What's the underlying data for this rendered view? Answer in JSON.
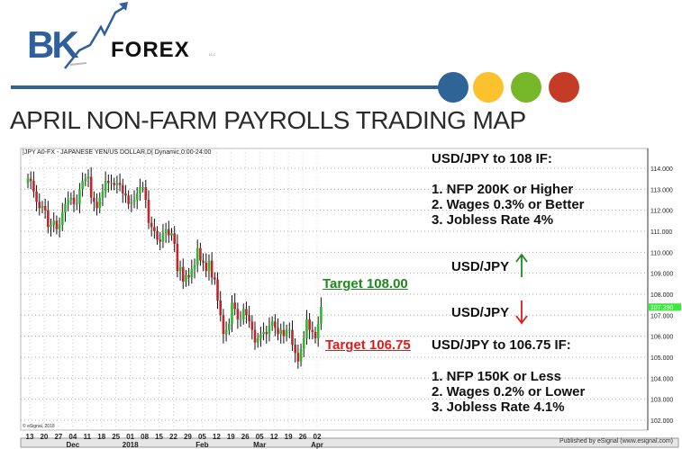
{
  "header": {
    "logo_text_bk": "BK",
    "logo_text_forex": "FOREX",
    "logo_text_llc": "LLC",
    "title": "APRIL NON-FARM PAYROLLS TRADING MAP",
    "rule_color": "#2e6496",
    "dot_colors": [
      "#2e6496",
      "#fbc22e",
      "#76b82a",
      "#c43b26"
    ]
  },
  "annotations": {
    "bull_heading": "USD/JPY to 108 IF:",
    "bull_items": [
      "1. NFP 200K or Higher",
      "2. Wages 0.3% or Better",
      "3. Jobless Rate 4%"
    ],
    "up_label": "USD/JPY",
    "down_label": "USD/JPY",
    "target_up": "Target 108.00",
    "target_down": "Target 106.75",
    "bear_heading": "USD/JPY to 106.75 IF:",
    "bear_items": [
      "1. NFP 150K or Less",
      "2. Wages 0.2% or Lower",
      "3. Jobless Rate 4.1%"
    ],
    "up_color": "#1e8a1e",
    "down_color": "#e01b1b"
  },
  "chart_data": {
    "type": "candlestick",
    "title": "|JPY A0-FX - JAPANESE YEN/US DOLLAR,D| Dynamic,0:00-24:00",
    "ylim": [
      102,
      114.5
    ],
    "y_ticks": [
      "114.000",
      "113.000",
      "112.000",
      "111.000",
      "110.000",
      "109.000",
      "108.000",
      "107.000",
      "106.000",
      "105.000",
      "104.000",
      "103.000",
      "102.000"
    ],
    "last_price": "107.390",
    "x_ticks": [
      "13",
      "20",
      "27",
      "04",
      "11",
      "18",
      "25",
      "01",
      "08",
      "15",
      "22",
      "29",
      "05",
      "12",
      "19",
      "26",
      "05",
      "12",
      "19",
      "26",
      "02"
    ],
    "x_month_labels": [
      {
        "label": "Dec",
        "tick": 3
      },
      {
        "label": "2018",
        "tick": 7
      },
      {
        "label": "Feb",
        "tick": 12
      },
      {
        "label": "Mar",
        "tick": 16
      },
      {
        "label": "Apr",
        "tick": 20
      }
    ],
    "closes": [
      113.5,
      113.4,
      112.9,
      112.4,
      112.1,
      112.2,
      112.0,
      111.2,
      111.3,
      111.5,
      111.1,
      111.3,
      111.9,
      112.3,
      112.5,
      112.6,
      112.3,
      112.3,
      113.0,
      113.4,
      113.5,
      113.6,
      112.6,
      112.4,
      112.1,
      112.6,
      112.9,
      113.4,
      113.3,
      113.3,
      113.2,
      113.3,
      113.2,
      112.8,
      112.7,
      112.3,
      112.4,
      112.5,
      112.8,
      113.1,
      113.1,
      112.5,
      111.4,
      111.2,
      111.0,
      110.6,
      110.5,
      110.9,
      111.1,
      110.8,
      110.9,
      110.4,
      109.1,
      109.3,
      108.6,
      108.9,
      108.8,
      109.2,
      109.4,
      110.2,
      109.6,
      109.5,
      109.1,
      109.6,
      108.8,
      108.7,
      107.7,
      107.0,
      106.1,
      106.3,
      106.6,
      107.6,
      107.3,
      106.8,
      106.8,
      107.3,
      107.0,
      106.7,
      106.3,
      105.7,
      105.9,
      106.1,
      106.2,
      106.1,
      106.5,
      106.7,
      106.4,
      106.1,
      106.3,
      106.0,
      106.3,
      106.3,
      105.6,
      105.2,
      104.8,
      105.4,
      105.9,
      106.8,
      106.3,
      106.2,
      105.9,
      106.6,
      107.4
    ],
    "first_open": 113.3,
    "up_color": "#2db82d",
    "down_color": "#c0262b",
    "grid": true,
    "watermark": "© eSignal, 2018",
    "published": "Published by eSignal (www.esignal.com)"
  }
}
